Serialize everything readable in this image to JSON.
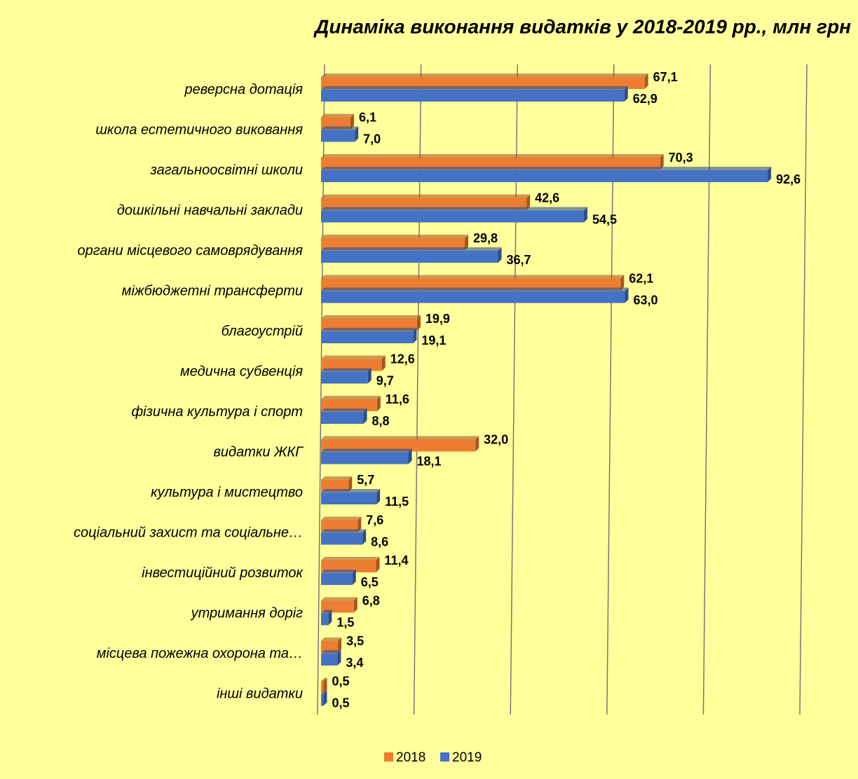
{
  "chart_data": {
    "type": "bar",
    "orientation": "horizontal",
    "title": "Динаміка виконання видатків  у 2018-2019 рр., млн грн",
    "categories": [
      "реверсна дотація",
      "школа естетичного виковання",
      "загальноосвітні школи",
      "дошкільні навчальні заклади",
      "органи місцевого самоврядування",
      "міжбюджетні трансферти",
      "благоустрій",
      "медична субвенція",
      "фізична культура і спорт",
      "видатки ЖКГ",
      "культура і мистецтво",
      "соціальний захист та соціальне…",
      "інвестиційний розвиток",
      "утримання доріг",
      "місцева пожежна охорона та…",
      "інші видатки"
    ],
    "series": [
      {
        "name": "2018",
        "color": "#ed7d31",
        "values": [
          67.1,
          6.1,
          70.3,
          42.6,
          29.8,
          62.1,
          19.9,
          12.6,
          11.6,
          32.0,
          5.7,
          7.6,
          11.4,
          6.8,
          3.5,
          0.5
        ],
        "value_labels": [
          "67,1",
          "6,1",
          "70,3",
          "42,6",
          "29,8",
          "62,1",
          "19,9",
          "12,6",
          "11,6",
          "32,0",
          "5,7",
          "7,6",
          "11,4",
          "6,8",
          "3,5",
          "0,5"
        ]
      },
      {
        "name": "2019",
        "color": "#4472c4",
        "values": [
          62.9,
          7.0,
          92.6,
          54.5,
          36.7,
          63.0,
          19.1,
          9.7,
          8.8,
          18.1,
          11.5,
          8.6,
          6.5,
          1.5,
          3.4,
          0.5
        ],
        "value_labels": [
          "62,9",
          "7,0",
          "92,6",
          "54,5",
          "36,7",
          "63,0",
          "19,1",
          "9,7",
          "8,8",
          "18,1",
          "11,5",
          "8,6",
          "6,5",
          "1,5",
          "3,4",
          "0,5"
        ]
      }
    ],
    "xlim": [
      0,
      100
    ],
    "xticks": [
      0,
      20,
      40,
      60,
      80,
      100
    ],
    "grid": true,
    "legend": "bottom"
  }
}
